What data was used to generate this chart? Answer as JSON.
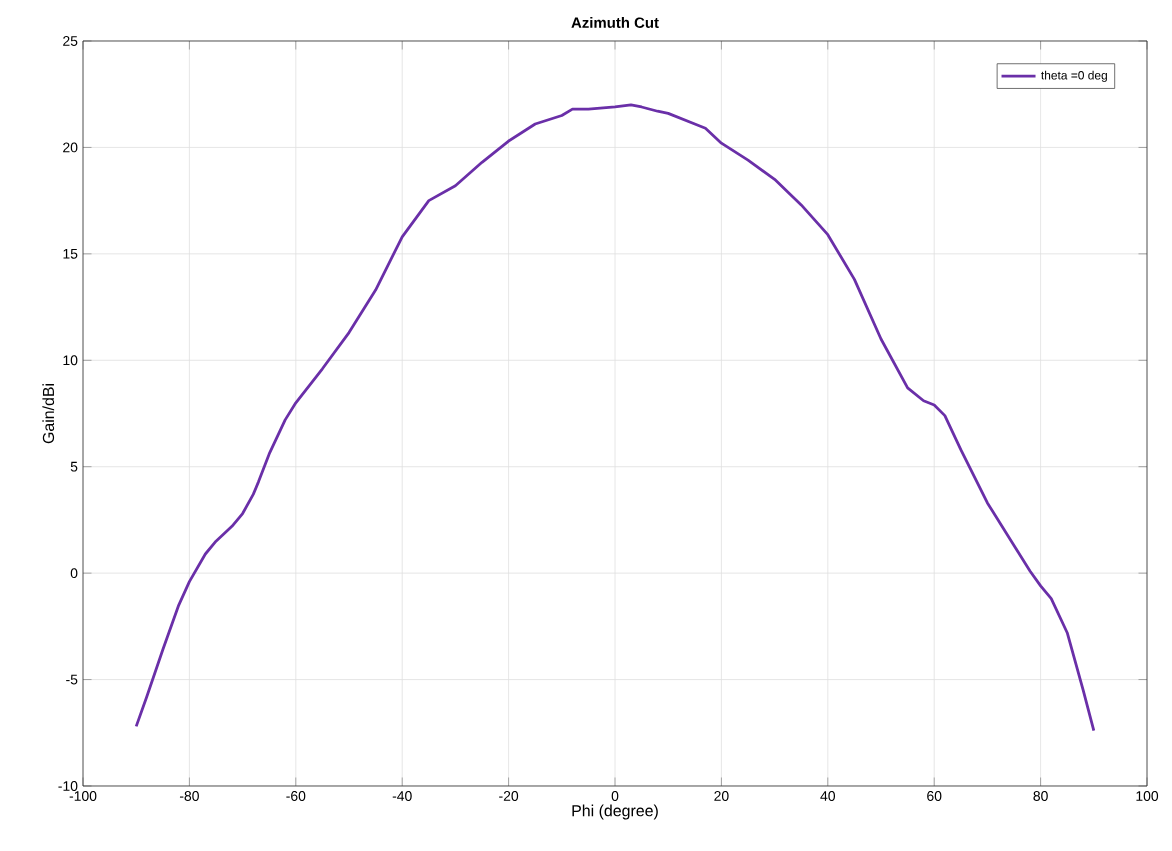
{
  "chart_data": {
    "type": "line",
    "title": "Azimuth Cut",
    "xlabel": "Phi (degree)",
    "ylabel": "Gain/dBi",
    "xlim": [
      -100,
      100
    ],
    "ylim": [
      -10,
      25
    ],
    "xticks": [
      -100,
      -80,
      -60,
      -40,
      -20,
      0,
      20,
      40,
      60,
      80,
      100
    ],
    "yticks": [
      -10,
      -5,
      0,
      5,
      10,
      15,
      20,
      25
    ],
    "grid": true,
    "legend": "top right",
    "line_style": "solid",
    "series": [
      {
        "name": "theta =0 deg",
        "color": "#6a2fa8",
        "x": [
          -90,
          -88,
          -85,
          -82,
          -80,
          -77,
          -75,
          -72,
          -70,
          -68,
          -67,
          -65,
          -62,
          -60,
          -55,
          -50,
          -45,
          -40,
          -35,
          -30,
          -25,
          -20,
          -15,
          -10,
          -8,
          -5,
          0,
          3,
          5,
          8,
          10,
          15,
          17,
          20,
          25,
          30,
          35,
          40,
          45,
          50,
          55,
          58,
          60,
          62,
          65,
          70,
          75,
          78,
          80,
          82,
          85,
          88,
          90
        ],
        "values": [
          -7.2,
          -5.8,
          -3.6,
          -1.5,
          -0.4,
          0.9,
          1.5,
          2.2,
          2.8,
          3.7,
          4.3,
          5.6,
          7.2,
          8.0,
          9.6,
          11.3,
          13.3,
          15.8,
          17.5,
          18.2,
          19.3,
          20.3,
          21.1,
          21.5,
          21.8,
          21.8,
          21.9,
          22.0,
          21.9,
          21.7,
          21.6,
          21.1,
          20.9,
          20.2,
          19.4,
          18.5,
          17.3,
          15.9,
          13.8,
          11.0,
          8.7,
          8.1,
          7.9,
          7.4,
          5.8,
          3.3,
          1.3,
          0.1,
          -0.6,
          -1.2,
          -2.8,
          -5.5,
          -7.4
        ]
      }
    ]
  }
}
